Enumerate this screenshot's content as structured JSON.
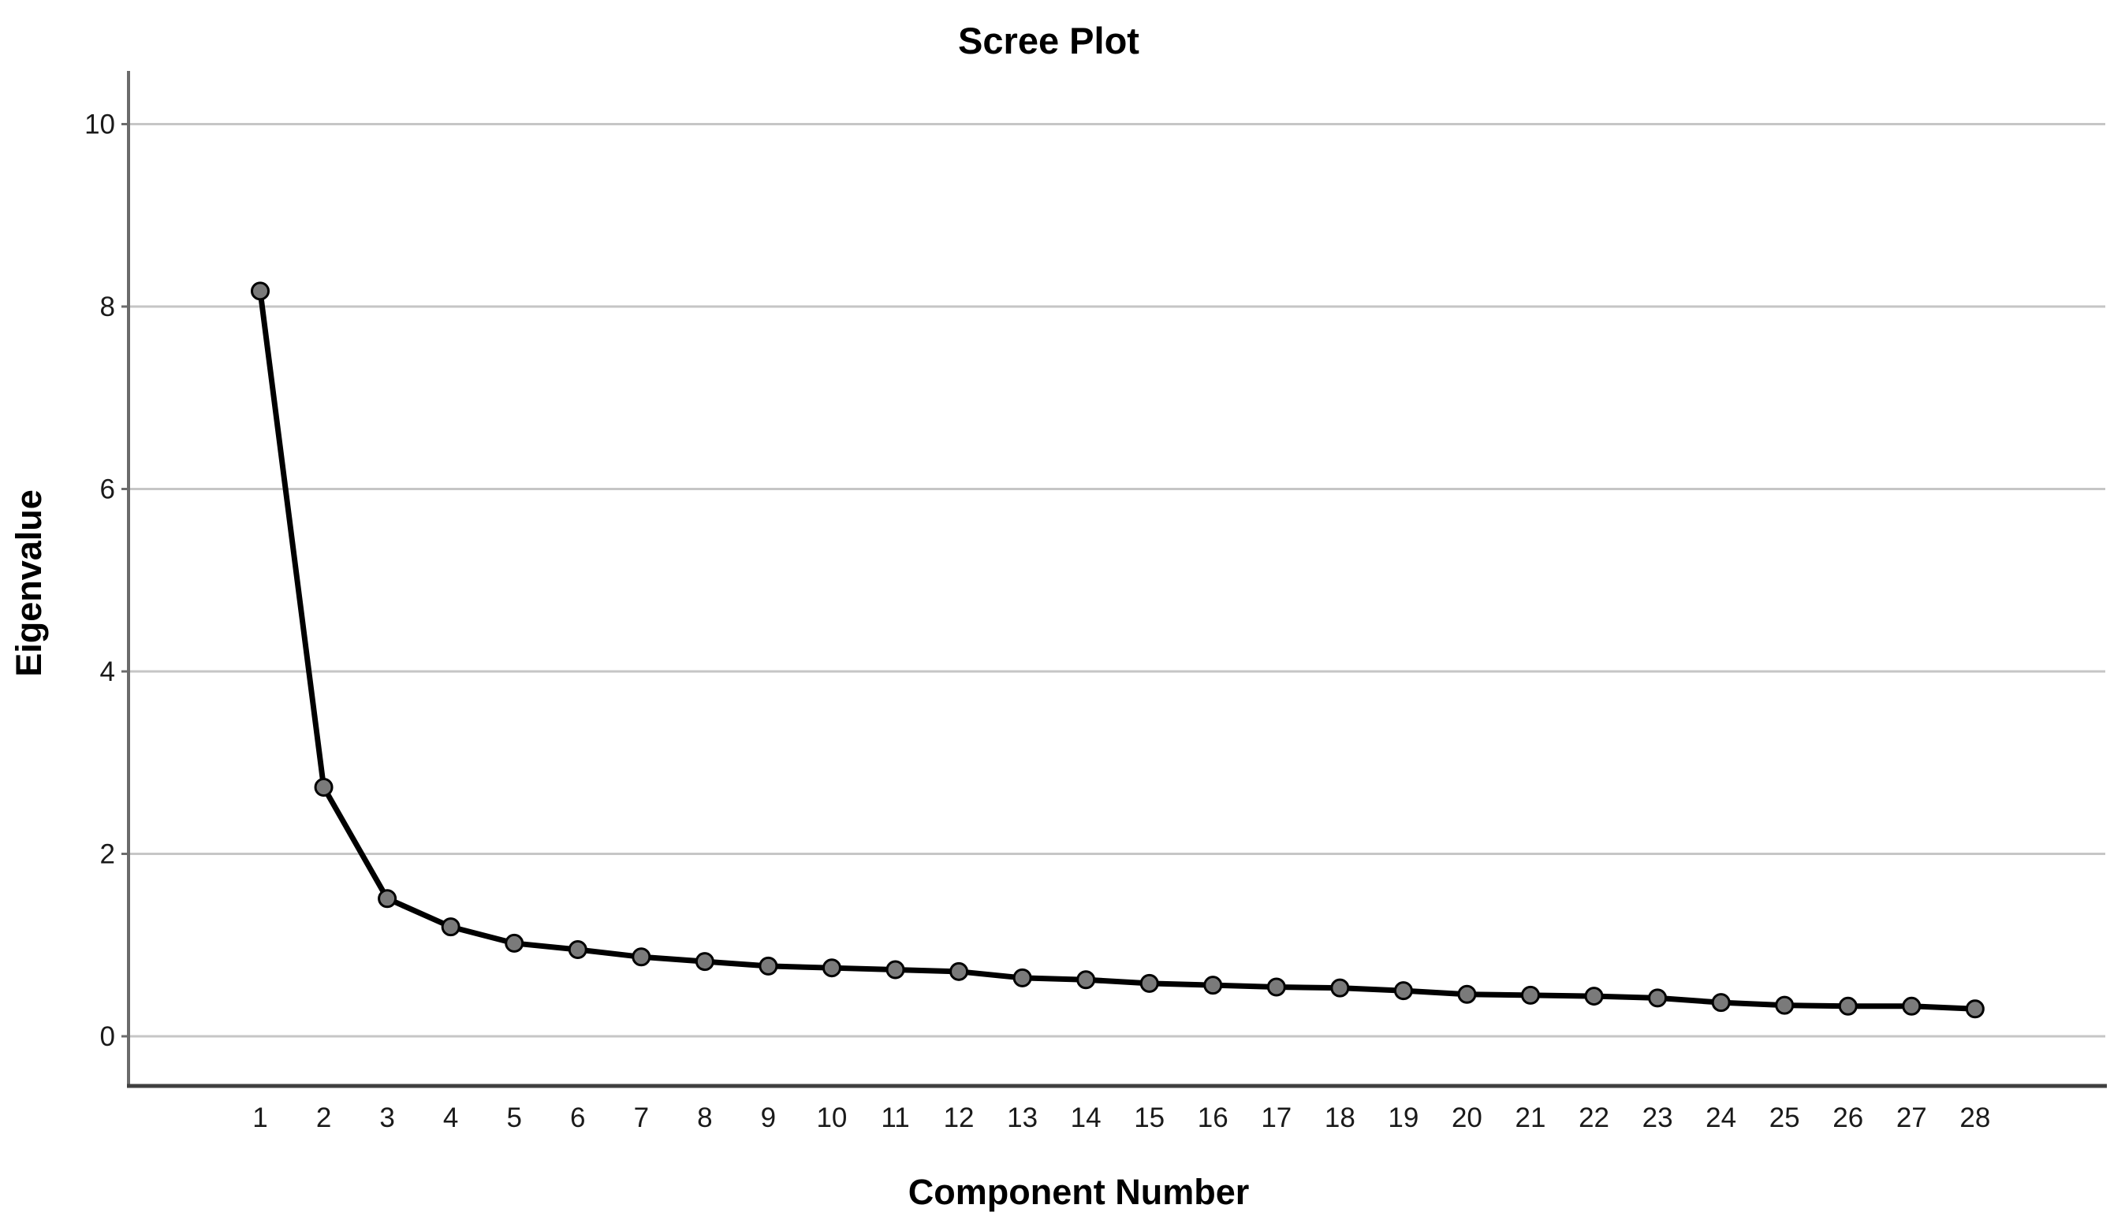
{
  "chart": {
    "title": "Scree Plot",
    "x_axis_label": "Component Number",
    "y_axis_label": "Eigenvalue"
  },
  "chart_data": {
    "type": "line",
    "title": "Scree Plot",
    "xlabel": "Component Number",
    "ylabel": "Eigenvalue",
    "x": [
      1,
      2,
      3,
      4,
      5,
      6,
      7,
      8,
      9,
      10,
      11,
      12,
      13,
      14,
      15,
      16,
      17,
      18,
      19,
      20,
      21,
      22,
      23,
      24,
      25,
      26,
      27,
      28
    ],
    "series": [
      {
        "name": "Eigenvalue",
        "values": [
          8.17,
          2.73,
          1.51,
          1.2,
          1.02,
          0.95,
          0.87,
          0.82,
          0.77,
          0.75,
          0.73,
          0.71,
          0.64,
          0.62,
          0.58,
          0.56,
          0.54,
          0.53,
          0.5,
          0.46,
          0.45,
          0.44,
          0.42,
          0.37,
          0.34,
          0.33,
          0.33,
          0.3
        ]
      }
    ],
    "y_ticks": [
      0,
      2,
      4,
      6,
      8,
      10
    ],
    "ylim": [
      -0.55,
      10.55
    ],
    "xlim": [
      -1,
      30
    ],
    "grid": "horizontal",
    "legend": "none",
    "colors": {
      "line": "#000000",
      "marker_fill": "#7a7a7a",
      "marker_stroke": "#000000",
      "gridline": "#c6c6c6",
      "y_axis_line": "#6b6b6b",
      "x_axis_line": "#3f3f3f",
      "background": "#ffffff",
      "text": "#000000"
    }
  }
}
